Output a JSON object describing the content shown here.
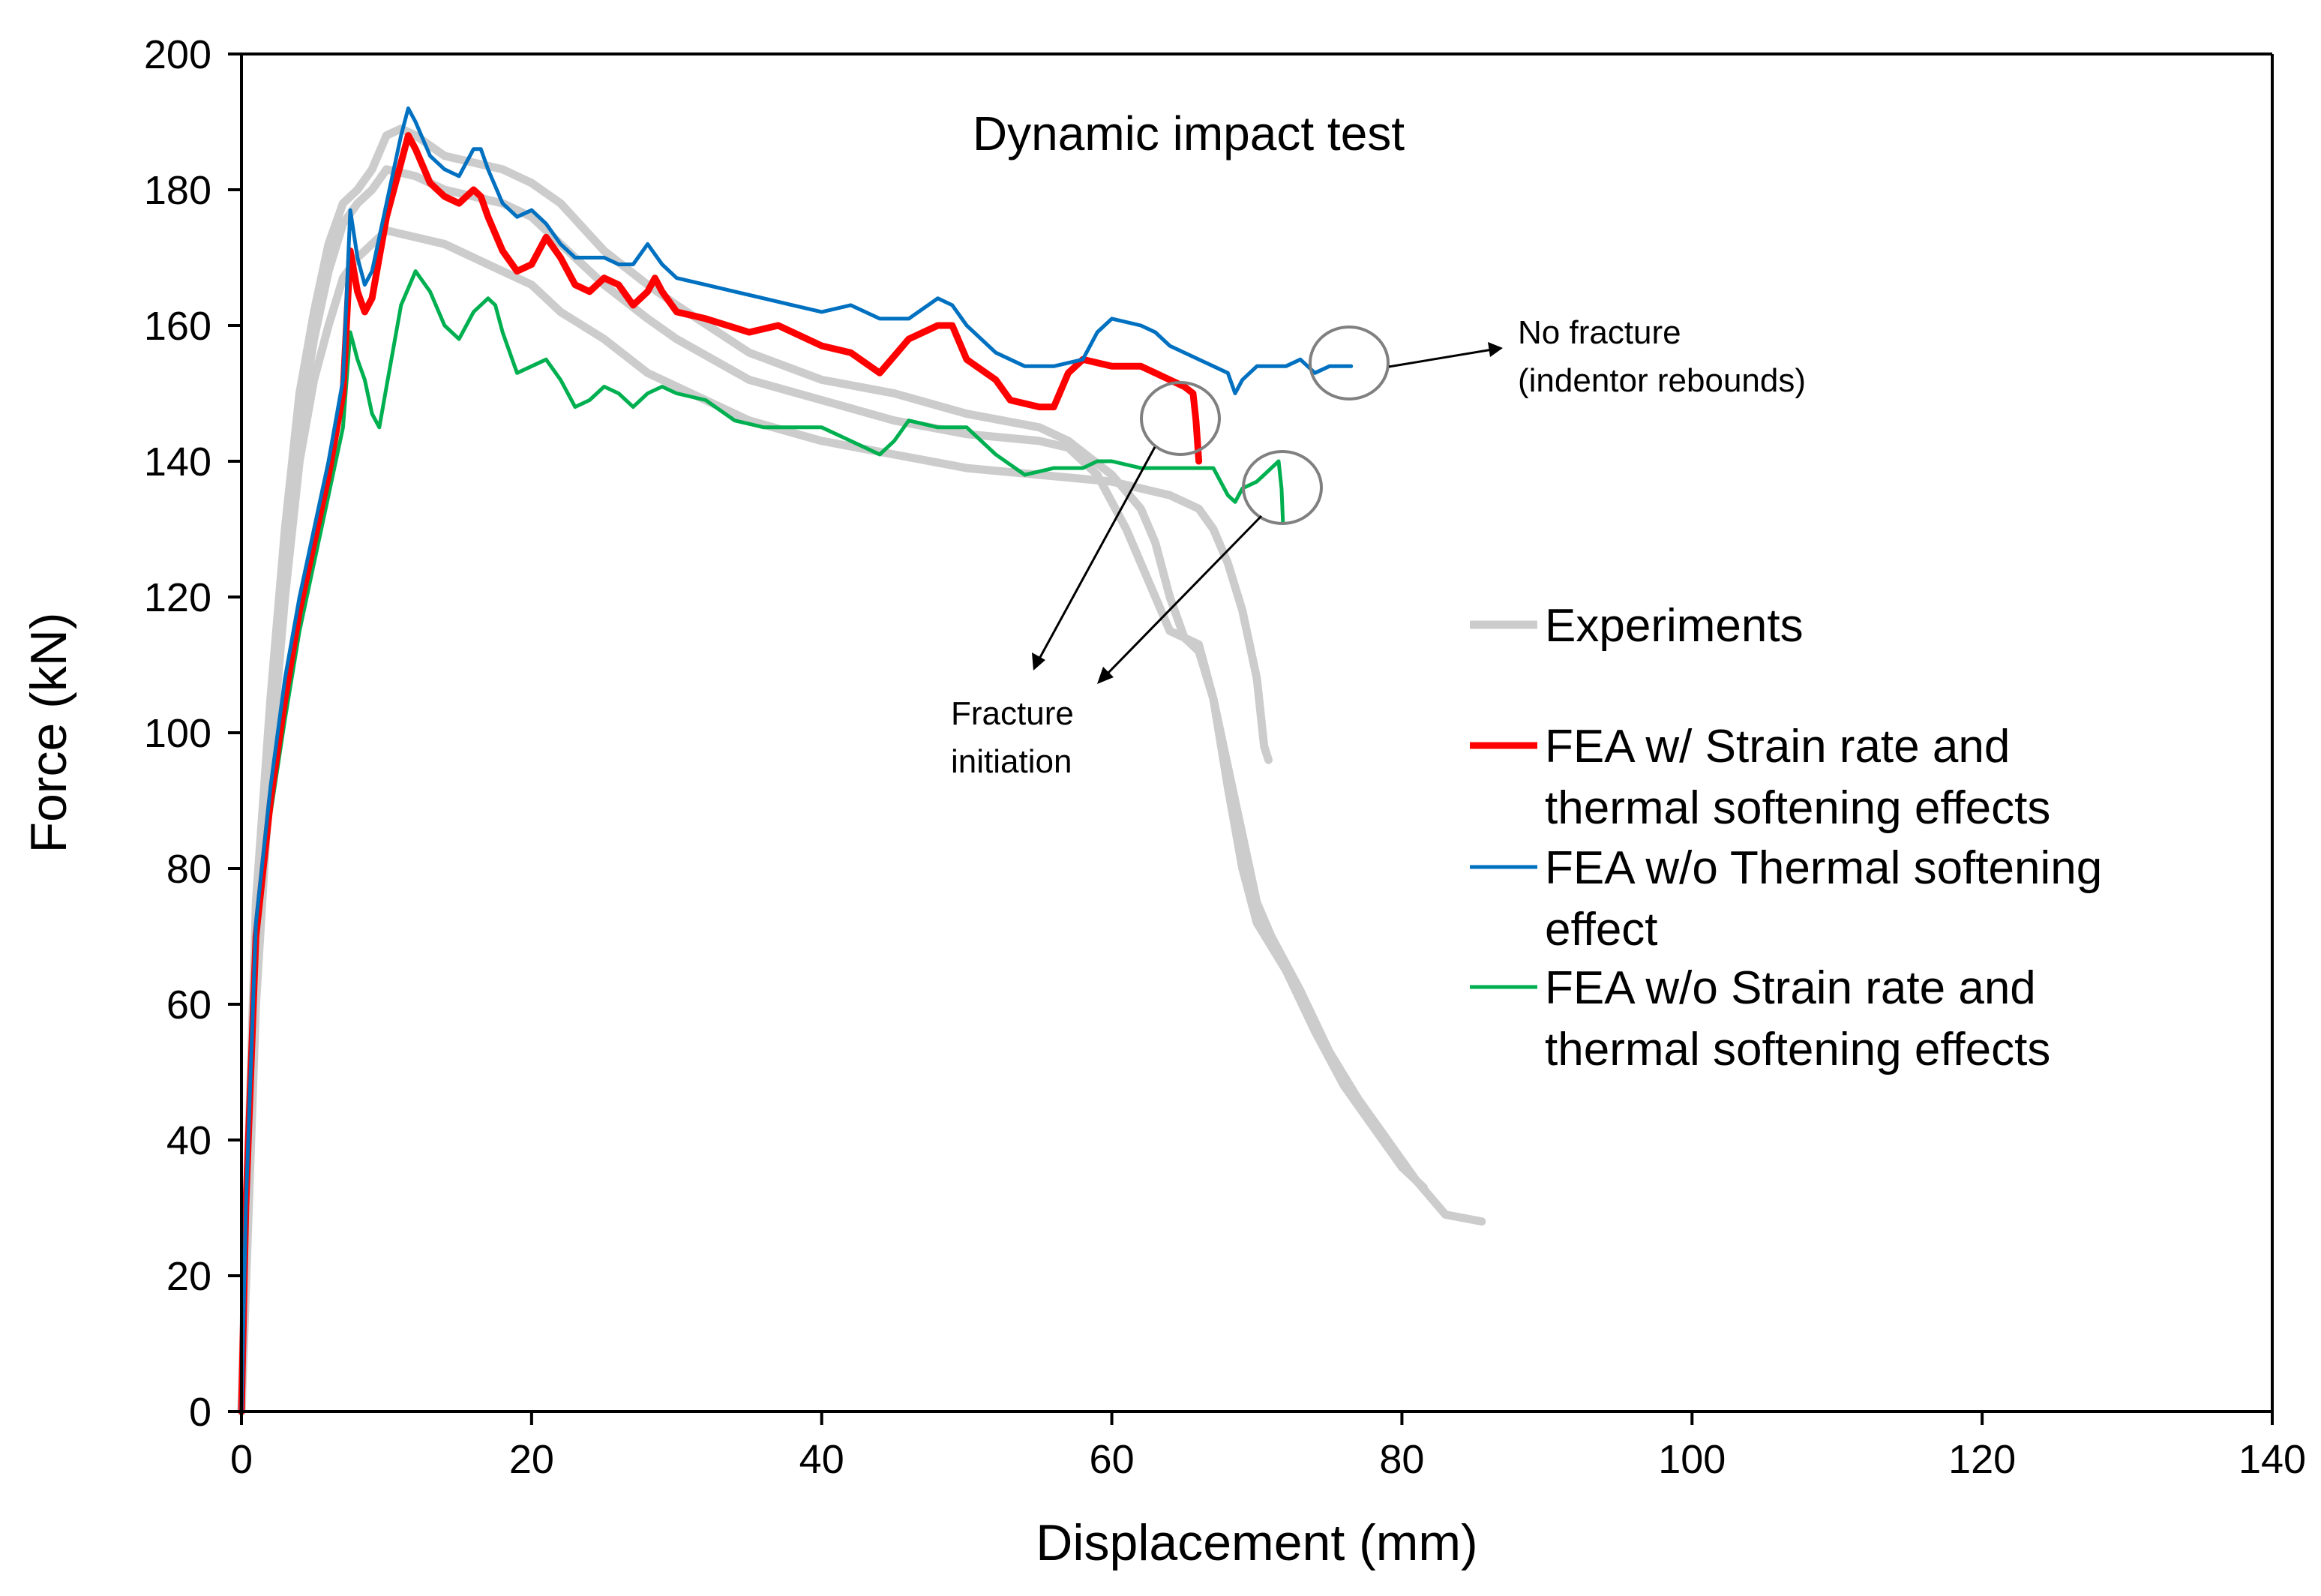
{
  "chart_data": {
    "type": "line",
    "title": "Dynamic impact test",
    "xlabel": "Displacement (mm)",
    "ylabel": "Force (kN)",
    "xlim": [
      0,
      140
    ],
    "ylim": [
      0,
      200
    ],
    "xticks": [
      0,
      20,
      40,
      60,
      80,
      100,
      120,
      140
    ],
    "yticks": [
      0,
      20,
      40,
      60,
      80,
      100,
      120,
      140,
      160,
      180,
      200
    ],
    "grid": false,
    "legend": {
      "position": "right",
      "entries": [
        {
          "lines": [
            "Experiments"
          ],
          "color": "#cccccc"
        },
        {
          "lines": [
            "FEA w/ Strain rate and",
            "thermal softening effects"
          ],
          "color": "#ff0000"
        },
        {
          "lines": [
            "FEA w/o Thermal softening",
            "effect"
          ],
          "color": "#0070c0"
        },
        {
          "lines": [
            "FEA w/o Strain rate and",
            "thermal softening effects"
          ],
          "color": "#00b050"
        }
      ]
    },
    "annotations": {
      "no_fracture": [
        "No fracture",
        "(indentor rebounds)"
      ],
      "fracture_initiation": [
        "Fracture",
        "initiation"
      ]
    },
    "series": [
      {
        "group": "Experiments",
        "color": "#cccccc",
        "points": [
          [
            0,
            0
          ],
          [
            0.5,
            40
          ],
          [
            1,
            75
          ],
          [
            2,
            105
          ],
          [
            3,
            130
          ],
          [
            4,
            150
          ],
          [
            5,
            162
          ],
          [
            6,
            172
          ],
          [
            7,
            178
          ],
          [
            8,
            180
          ],
          [
            9,
            183
          ],
          [
            10,
            188
          ],
          [
            11,
            189
          ],
          [
            12,
            188
          ],
          [
            14,
            185
          ],
          [
            16,
            184
          ],
          [
            18,
            183
          ],
          [
            20,
            181
          ],
          [
            22,
            178
          ],
          [
            25,
            171
          ],
          [
            28,
            166
          ],
          [
            30,
            163
          ],
          [
            35,
            156
          ],
          [
            40,
            152
          ],
          [
            45,
            150
          ],
          [
            50,
            147
          ],
          [
            55,
            145
          ],
          [
            57,
            143
          ],
          [
            60,
            138
          ],
          [
            62,
            133
          ],
          [
            63,
            128
          ],
          [
            64,
            120
          ],
          [
            65,
            114
          ],
          [
            66,
            112
          ],
          [
            67,
            105
          ],
          [
            68,
            92
          ],
          [
            69,
            80
          ],
          [
            70,
            72
          ],
          [
            72,
            65
          ],
          [
            74,
            56
          ],
          [
            76,
            48
          ],
          [
            78,
            42
          ],
          [
            80,
            36
          ],
          [
            81.5,
            33
          ]
        ]
      },
      {
        "group": "Experiments",
        "color": "#cccccc",
        "points": [
          [
            0,
            0
          ],
          [
            0.5,
            35
          ],
          [
            1,
            70
          ],
          [
            2,
            100
          ],
          [
            3,
            128
          ],
          [
            4,
            145
          ],
          [
            5,
            158
          ],
          [
            6,
            168
          ],
          [
            7,
            175
          ],
          [
            8,
            178
          ],
          [
            9,
            180
          ],
          [
            10,
            183
          ],
          [
            12,
            182
          ],
          [
            14,
            180
          ],
          [
            16,
            179
          ],
          [
            18,
            178
          ],
          [
            20,
            176
          ],
          [
            22,
            172
          ],
          [
            25,
            166
          ],
          [
            28,
            161
          ],
          [
            30,
            158
          ],
          [
            35,
            152
          ],
          [
            40,
            149
          ],
          [
            45,
            146
          ],
          [
            50,
            144
          ],
          [
            55,
            143
          ],
          [
            57,
            142
          ],
          [
            59,
            138
          ],
          [
            61,
            130
          ],
          [
            63,
            120
          ],
          [
            64,
            115
          ],
          [
            65,
            114
          ],
          [
            66,
            113
          ],
          [
            67,
            105
          ],
          [
            68,
            95
          ],
          [
            69,
            85
          ],
          [
            70,
            75
          ],
          [
            71,
            70
          ],
          [
            73,
            62
          ],
          [
            75,
            53
          ],
          [
            77,
            46
          ],
          [
            79,
            40
          ],
          [
            81,
            34
          ],
          [
            83,
            29
          ],
          [
            85.5,
            28
          ]
        ]
      },
      {
        "group": "Experiments",
        "color": "#cccccc",
        "points": [
          [
            0,
            0
          ],
          [
            1,
            60
          ],
          [
            2,
            95
          ],
          [
            3,
            120
          ],
          [
            4,
            140
          ],
          [
            5,
            152
          ],
          [
            6,
            160
          ],
          [
            7,
            167
          ],
          [
            8,
            170
          ],
          [
            9,
            172
          ],
          [
            10,
            174
          ],
          [
            12,
            173
          ],
          [
            14,
            172
          ],
          [
            16,
            170
          ],
          [
            18,
            168
          ],
          [
            20,
            166
          ],
          [
            22,
            162
          ],
          [
            25,
            158
          ],
          [
            28,
            153
          ],
          [
            30,
            151
          ],
          [
            35,
            146
          ],
          [
            40,
            143
          ],
          [
            45,
            141
          ],
          [
            50,
            139
          ],
          [
            55,
            138
          ],
          [
            60,
            137
          ],
          [
            64,
            135
          ],
          [
            66,
            133
          ],
          [
            67,
            130
          ],
          [
            68,
            125
          ],
          [
            69,
            118
          ],
          [
            70,
            108
          ],
          [
            70.5,
            98
          ],
          [
            70.8,
            96
          ]
        ]
      },
      {
        "group": "FEA w/ Strain rate and thermal softening effects",
        "color": "#ff0000",
        "points": [
          [
            0,
            0
          ],
          [
            0.3,
            30
          ],
          [
            1,
            70
          ],
          [
            2,
            90
          ],
          [
            3,
            105
          ],
          [
            4,
            118
          ],
          [
            5,
            128
          ],
          [
            6,
            138
          ],
          [
            7,
            150
          ],
          [
            7.5,
            171
          ],
          [
            8,
            165
          ],
          [
            8.5,
            162
          ],
          [
            9,
            164
          ],
          [
            10,
            176
          ],
          [
            11,
            184
          ],
          [
            11.5,
            188
          ],
          [
            12,
            186
          ],
          [
            13,
            181
          ],
          [
            14,
            179
          ],
          [
            15,
            178
          ],
          [
            16,
            180
          ],
          [
            16.5,
            179
          ],
          [
            17,
            176
          ],
          [
            18,
            171
          ],
          [
            19,
            168
          ],
          [
            20,
            169
          ],
          [
            21,
            173
          ],
          [
            22,
            170
          ],
          [
            23,
            166
          ],
          [
            24,
            165
          ],
          [
            25,
            167
          ],
          [
            26,
            166
          ],
          [
            27,
            163
          ],
          [
            28,
            165
          ],
          [
            28.5,
            167
          ],
          [
            29,
            165
          ],
          [
            30,
            162
          ],
          [
            32,
            161
          ],
          [
            35,
            159
          ],
          [
            37,
            160
          ],
          [
            40,
            157
          ],
          [
            42,
            156
          ],
          [
            44,
            153
          ],
          [
            46,
            158
          ],
          [
            48,
            160
          ],
          [
            49,
            160
          ],
          [
            50,
            155
          ],
          [
            52,
            152
          ],
          [
            53,
            149
          ],
          [
            55,
            148
          ],
          [
            56,
            148
          ],
          [
            57,
            153
          ],
          [
            58,
            155
          ],
          [
            60,
            154
          ],
          [
            62,
            154
          ],
          [
            63,
            153
          ],
          [
            64,
            152
          ],
          [
            65,
            151
          ],
          [
            65.6,
            150
          ],
          [
            65.8,
            146
          ],
          [
            66,
            140
          ]
        ]
      },
      {
        "group": "FEA w/o Thermal softening effect",
        "color": "#0070c0",
        "points": [
          [
            0,
            0
          ],
          [
            0.3,
            30
          ],
          [
            1,
            72
          ],
          [
            2,
            92
          ],
          [
            3,
            108
          ],
          [
            4,
            120
          ],
          [
            5,
            130
          ],
          [
            6,
            140
          ],
          [
            7,
            152
          ],
          [
            7.5,
            177
          ],
          [
            8,
            170
          ],
          [
            8.5,
            166
          ],
          [
            9,
            168
          ],
          [
            10,
            178
          ],
          [
            11,
            188
          ],
          [
            11.5,
            192
          ],
          [
            12,
            190
          ],
          [
            13,
            185
          ],
          [
            14,
            183
          ],
          [
            15,
            182
          ],
          [
            16,
            186
          ],
          [
            16.5,
            186
          ],
          [
            17,
            183
          ],
          [
            18,
            178
          ],
          [
            19,
            176
          ],
          [
            20,
            177
          ],
          [
            21,
            175
          ],
          [
            22,
            172
          ],
          [
            23,
            170
          ],
          [
            25,
            170
          ],
          [
            26,
            169
          ],
          [
            27,
            169
          ],
          [
            28,
            172
          ],
          [
            29,
            169
          ],
          [
            30,
            167
          ],
          [
            32,
            166
          ],
          [
            34,
            165
          ],
          [
            36,
            164
          ],
          [
            38,
            163
          ],
          [
            40,
            162
          ],
          [
            42,
            163
          ],
          [
            44,
            161
          ],
          [
            46,
            161
          ],
          [
            48,
            164
          ],
          [
            49,
            163
          ],
          [
            50,
            160
          ],
          [
            52,
            156
          ],
          [
            54,
            154
          ],
          [
            56,
            154
          ],
          [
            58,
            155
          ],
          [
            59,
            159
          ],
          [
            60,
            161
          ],
          [
            62,
            160
          ],
          [
            63,
            159
          ],
          [
            64,
            157
          ],
          [
            66,
            155
          ],
          [
            68,
            153
          ],
          [
            68.5,
            150
          ],
          [
            69,
            152
          ],
          [
            70,
            154
          ],
          [
            72,
            154
          ],
          [
            73,
            155
          ],
          [
            74,
            153
          ],
          [
            75,
            154
          ],
          [
            76,
            154
          ],
          [
            76.5,
            154
          ]
        ]
      },
      {
        "group": "FEA w/o Strain rate and thermal softening effects",
        "color": "#00b050",
        "points": [
          [
            0,
            0
          ],
          [
            0.3,
            28
          ],
          [
            1,
            68
          ],
          [
            2,
            88
          ],
          [
            3,
            102
          ],
          [
            4,
            115
          ],
          [
            5,
            125
          ],
          [
            6,
            135
          ],
          [
            7,
            145
          ],
          [
            7.5,
            159
          ],
          [
            8,
            155
          ],
          [
            8.5,
            152
          ],
          [
            9,
            147
          ],
          [
            9.5,
            145
          ],
          [
            10,
            151
          ],
          [
            11,
            163
          ],
          [
            12,
            168
          ],
          [
            13,
            165
          ],
          [
            14,
            160
          ],
          [
            15,
            158
          ],
          [
            16,
            162
          ],
          [
            17,
            164
          ],
          [
            17.5,
            163
          ],
          [
            18,
            159
          ],
          [
            19,
            153
          ],
          [
            20,
            154
          ],
          [
            21,
            155
          ],
          [
            22,
            152
          ],
          [
            23,
            148
          ],
          [
            24,
            149
          ],
          [
            25,
            151
          ],
          [
            26,
            150
          ],
          [
            27,
            148
          ],
          [
            28,
            150
          ],
          [
            29,
            151
          ],
          [
            30,
            150
          ],
          [
            32,
            149
          ],
          [
            34,
            146
          ],
          [
            36,
            145
          ],
          [
            38,
            145
          ],
          [
            40,
            145
          ],
          [
            42,
            143
          ],
          [
            44,
            141
          ],
          [
            45,
            143
          ],
          [
            46,
            146
          ],
          [
            48,
            145
          ],
          [
            50,
            145
          ],
          [
            52,
            141
          ],
          [
            54,
            138
          ],
          [
            56,
            139
          ],
          [
            58,
            139
          ],
          [
            59,
            140
          ],
          [
            60,
            140
          ],
          [
            62,
            139
          ],
          [
            64,
            139
          ],
          [
            66,
            139
          ],
          [
            67,
            139
          ],
          [
            68,
            135
          ],
          [
            68.5,
            134
          ],
          [
            69,
            136
          ],
          [
            70,
            137
          ],
          [
            71,
            139
          ],
          [
            71.5,
            140
          ],
          [
            71.7,
            136
          ],
          [
            71.8,
            131
          ]
        ]
      }
    ]
  }
}
